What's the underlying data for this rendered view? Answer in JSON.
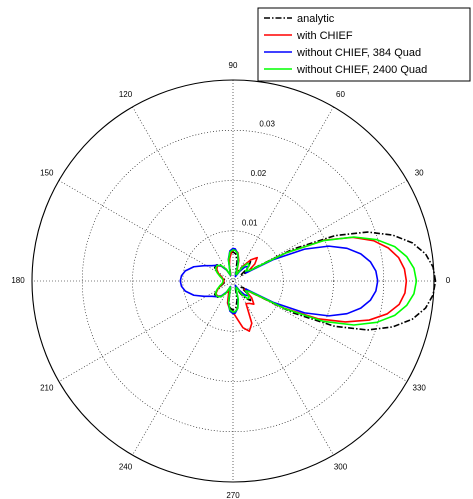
{
  "chart_data": {
    "type": "polar_line",
    "title": "",
    "r_max": 0.04,
    "radial_ticks": [
      {
        "value": 0.01,
        "label": "0.01"
      },
      {
        "value": 0.02,
        "label": "0.02"
      },
      {
        "value": 0.03,
        "label": "0.03"
      }
    ],
    "angle_ticks": [
      {
        "deg": 0,
        "label": "0"
      },
      {
        "deg": 30,
        "label": "30"
      },
      {
        "deg": 60,
        "label": "60"
      },
      {
        "deg": 90,
        "label": "90"
      },
      {
        "deg": 120,
        "label": "120"
      },
      {
        "deg": 150,
        "label": "150"
      },
      {
        "deg": 180,
        "label": "180"
      },
      {
        "deg": 210,
        "label": "210"
      },
      {
        "deg": 240,
        "label": "240"
      },
      {
        "deg": 270,
        "label": "270"
      },
      {
        "deg": 300,
        "label": "300"
      },
      {
        "deg": 330,
        "label": "330"
      }
    ],
    "grid": true,
    "legend_position": "top-right",
    "series": [
      {
        "name": "analytic",
        "color": "#000000",
        "dash": "dashdot",
        "points": [
          [
            0,
            0.0403
          ],
          [
            4,
            0.0399
          ],
          [
            8,
            0.0387
          ],
          [
            12,
            0.0365
          ],
          [
            16,
            0.0331
          ],
          [
            20,
            0.0285
          ],
          [
            24,
            0.0222
          ],
          [
            28,
            0.0135
          ],
          [
            32,
            0.0045
          ],
          [
            36,
            0.0018
          ],
          [
            42,
            0.0042
          ],
          [
            48,
            0.0052
          ],
          [
            54,
            0.0043
          ],
          [
            60,
            0.0027
          ],
          [
            66,
            0.0013
          ],
          [
            72,
            0.0016
          ],
          [
            78,
            0.0039
          ],
          [
            84,
            0.0054
          ],
          [
            90,
            0.0058
          ],
          [
            96,
            0.0054
          ],
          [
            102,
            0.0039
          ],
          [
            108,
            0.0016
          ],
          [
            114,
            0.0013
          ],
          [
            120,
            0.0027
          ],
          [
            128,
            0.0041
          ],
          [
            136,
            0.0046
          ],
          [
            144,
            0.0045
          ],
          [
            152,
            0.0035
          ],
          [
            160,
            0.0024
          ],
          [
            168,
            0.0018
          ],
          [
            176,
            0.0017
          ],
          [
            180,
            0.0017
          ],
          [
            184,
            0.0017
          ],
          [
            192,
            0.0018
          ],
          [
            200,
            0.0024
          ],
          [
            208,
            0.0035
          ],
          [
            216,
            0.0045
          ],
          [
            224,
            0.0046
          ],
          [
            232,
            0.0041
          ],
          [
            240,
            0.0027
          ],
          [
            246,
            0.0013
          ],
          [
            252,
            0.0016
          ],
          [
            258,
            0.0039
          ],
          [
            264,
            0.0054
          ],
          [
            270,
            0.0058
          ],
          [
            276,
            0.0054
          ],
          [
            282,
            0.0039
          ],
          [
            288,
            0.0016
          ],
          [
            294,
            0.0013
          ],
          [
            300,
            0.0027
          ],
          [
            306,
            0.0043
          ],
          [
            312,
            0.0052
          ],
          [
            318,
            0.0042
          ],
          [
            324,
            0.0018
          ],
          [
            328,
            0.0045
          ],
          [
            332,
            0.0135
          ],
          [
            336,
            0.0222
          ],
          [
            340,
            0.0285
          ],
          [
            344,
            0.0331
          ],
          [
            348,
            0.0365
          ],
          [
            352,
            0.0387
          ],
          [
            356,
            0.0399
          ],
          [
            360,
            0.0403
          ]
        ]
      },
      {
        "name": "with CHIEF",
        "color": "#ff0000",
        "dash": "solid",
        "points": [
          [
            0,
            0.0345
          ],
          [
            4,
            0.0342
          ],
          [
            8,
            0.0333
          ],
          [
            12,
            0.0316
          ],
          [
            16,
            0.0291
          ],
          [
            20,
            0.0254
          ],
          [
            24,
            0.02
          ],
          [
            28,
            0.0118
          ],
          [
            32,
            0.0035
          ],
          [
            38,
            0.0055
          ],
          [
            44,
            0.0067
          ],
          [
            50,
            0.0055
          ],
          [
            56,
            0.0035
          ],
          [
            62,
            0.0015
          ],
          [
            68,
            0.002
          ],
          [
            74,
            0.0042
          ],
          [
            80,
            0.0057
          ],
          [
            86,
            0.0062
          ],
          [
            92,
            0.006
          ],
          [
            98,
            0.0046
          ],
          [
            104,
            0.003
          ],
          [
            112,
            0.0012
          ],
          [
            120,
            0.0025
          ],
          [
            128,
            0.0038
          ],
          [
            136,
            0.0043
          ],
          [
            144,
            0.004
          ],
          [
            152,
            0.0033
          ],
          [
            160,
            0.0025
          ],
          [
            168,
            0.002
          ],
          [
            176,
            0.0018
          ],
          [
            184,
            0.0018
          ],
          [
            192,
            0.002
          ],
          [
            200,
            0.0026
          ],
          [
            208,
            0.0034
          ],
          [
            216,
            0.0042
          ],
          [
            224,
            0.0043
          ],
          [
            232,
            0.0038
          ],
          [
            240,
            0.0027
          ],
          [
            248,
            0.0022
          ],
          [
            256,
            0.0045
          ],
          [
            264,
            0.0058
          ],
          [
            270,
            0.0062
          ],
          [
            276,
            0.0075
          ],
          [
            282,
            0.0095
          ],
          [
            288,
            0.0105
          ],
          [
            294,
            0.0092
          ],
          [
            300,
            0.0052
          ],
          [
            306,
            0.0055
          ],
          [
            312,
            0.0062
          ],
          [
            318,
            0.005
          ],
          [
            324,
            0.0028
          ],
          [
            328,
            0.0045
          ],
          [
            332,
            0.0115
          ],
          [
            336,
            0.0185
          ],
          [
            340,
            0.0238
          ],
          [
            344,
            0.0282
          ],
          [
            348,
            0.0314
          ],
          [
            352,
            0.0334
          ],
          [
            356,
            0.0343
          ],
          [
            360,
            0.0345
          ]
        ]
      },
      {
        "name": "without CHIEF, 384 Quad",
        "color": "#0000ff",
        "dash": "solid",
        "points": [
          [
            0,
            0.0288
          ],
          [
            4,
            0.0285
          ],
          [
            8,
            0.0276
          ],
          [
            12,
            0.026
          ],
          [
            16,
            0.0236
          ],
          [
            20,
            0.0203
          ],
          [
            24,
            0.0156
          ],
          [
            28,
            0.009
          ],
          [
            32,
            0.003
          ],
          [
            38,
            0.0035
          ],
          [
            44,
            0.0042
          ],
          [
            50,
            0.0036
          ],
          [
            56,
            0.0022
          ],
          [
            62,
            0.001
          ],
          [
            68,
            0.0014
          ],
          [
            74,
            0.0036
          ],
          [
            80,
            0.0055
          ],
          [
            86,
            0.0064
          ],
          [
            90,
            0.0065
          ],
          [
            96,
            0.006
          ],
          [
            102,
            0.0044
          ],
          [
            108,
            0.002
          ],
          [
            114,
            0.0012
          ],
          [
            120,
            0.0025
          ],
          [
            128,
            0.0038
          ],
          [
            136,
            0.0045
          ],
          [
            144,
            0.0052
          ],
          [
            152,
            0.0065
          ],
          [
            160,
            0.0083
          ],
          [
            168,
            0.0097
          ],
          [
            174,
            0.0103
          ],
          [
            180,
            0.0105
          ],
          [
            186,
            0.0103
          ],
          [
            192,
            0.0097
          ],
          [
            200,
            0.0083
          ],
          [
            208,
            0.0065
          ],
          [
            216,
            0.0052
          ],
          [
            224,
            0.0045
          ],
          [
            232,
            0.0038
          ],
          [
            240,
            0.0025
          ],
          [
            246,
            0.0012
          ],
          [
            252,
            0.002
          ],
          [
            258,
            0.0044
          ],
          [
            264,
            0.006
          ],
          [
            270,
            0.0065
          ],
          [
            274,
            0.0064
          ],
          [
            280,
            0.0055
          ],
          [
            286,
            0.0036
          ],
          [
            292,
            0.0014
          ],
          [
            298,
            0.001
          ],
          [
            304,
            0.0022
          ],
          [
            310,
            0.0036
          ],
          [
            316,
            0.0042
          ],
          [
            322,
            0.0035
          ],
          [
            328,
            0.003
          ],
          [
            332,
            0.009
          ],
          [
            336,
            0.0156
          ],
          [
            340,
            0.0203
          ],
          [
            344,
            0.0236
          ],
          [
            348,
            0.026
          ],
          [
            352,
            0.0276
          ],
          [
            356,
            0.0285
          ],
          [
            360,
            0.0288
          ]
        ]
      },
      {
        "name": "without CHIEF, 2400 Quad",
        "color": "#00ff00",
        "dash": "solid",
        "points": [
          [
            0,
            0.0365
          ],
          [
            4,
            0.0361
          ],
          [
            8,
            0.0349
          ],
          [
            12,
            0.0329
          ],
          [
            16,
            0.0298
          ],
          [
            20,
            0.0256
          ],
          [
            24,
            0.0198
          ],
          [
            28,
            0.0118
          ],
          [
            32,
            0.004
          ],
          [
            38,
            0.0032
          ],
          [
            44,
            0.0045
          ],
          [
            50,
            0.0046
          ],
          [
            56,
            0.0032
          ],
          [
            62,
            0.0014
          ],
          [
            68,
            0.0016
          ],
          [
            74,
            0.0038
          ],
          [
            80,
            0.0055
          ],
          [
            86,
            0.0061
          ],
          [
            90,
            0.0062
          ],
          [
            96,
            0.0058
          ],
          [
            102,
            0.0043
          ],
          [
            108,
            0.0019
          ],
          [
            114,
            0.0013
          ],
          [
            120,
            0.0027
          ],
          [
            128,
            0.004
          ],
          [
            136,
            0.0044
          ],
          [
            144,
            0.0043
          ],
          [
            152,
            0.0036
          ],
          [
            160,
            0.0028
          ],
          [
            168,
            0.0022
          ],
          [
            176,
            0.002
          ],
          [
            180,
            0.002
          ],
          [
            184,
            0.002
          ],
          [
            192,
            0.0022
          ],
          [
            200,
            0.0028
          ],
          [
            208,
            0.0036
          ],
          [
            216,
            0.0043
          ],
          [
            224,
            0.0044
          ],
          [
            232,
            0.004
          ],
          [
            240,
            0.0027
          ],
          [
            246,
            0.0013
          ],
          [
            252,
            0.0019
          ],
          [
            258,
            0.0043
          ],
          [
            264,
            0.0058
          ],
          [
            270,
            0.0062
          ],
          [
            274,
            0.0061
          ],
          [
            280,
            0.0055
          ],
          [
            286,
            0.0038
          ],
          [
            292,
            0.0016
          ],
          [
            298,
            0.0014
          ],
          [
            304,
            0.0032
          ],
          [
            310,
            0.0046
          ],
          [
            316,
            0.0045
          ],
          [
            322,
            0.0032
          ],
          [
            328,
            0.004
          ],
          [
            332,
            0.0118
          ],
          [
            336,
            0.0198
          ],
          [
            340,
            0.0256
          ],
          [
            344,
            0.0298
          ],
          [
            348,
            0.0329
          ],
          [
            352,
            0.0349
          ],
          [
            356,
            0.0361
          ],
          [
            360,
            0.0365
          ]
        ]
      }
    ]
  }
}
